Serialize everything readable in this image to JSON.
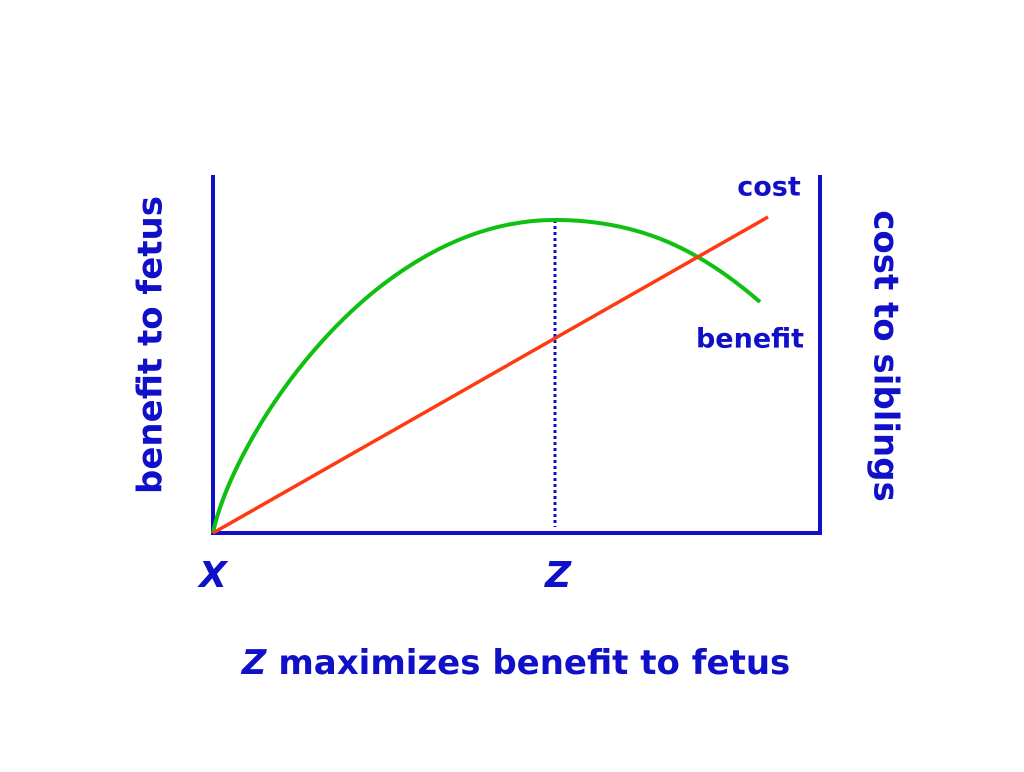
{
  "diagram": {
    "y_axis_left_label": "benefit to fetus",
    "y_axis_right_label": "cost to siblings",
    "curve_labels": {
      "cost": "cost",
      "benefit": "benefit"
    },
    "x_points": {
      "origin": "X",
      "optimum": "Z"
    },
    "caption": {
      "variable": "Z",
      "text": "maximizes benefit to fetus"
    }
  }
}
